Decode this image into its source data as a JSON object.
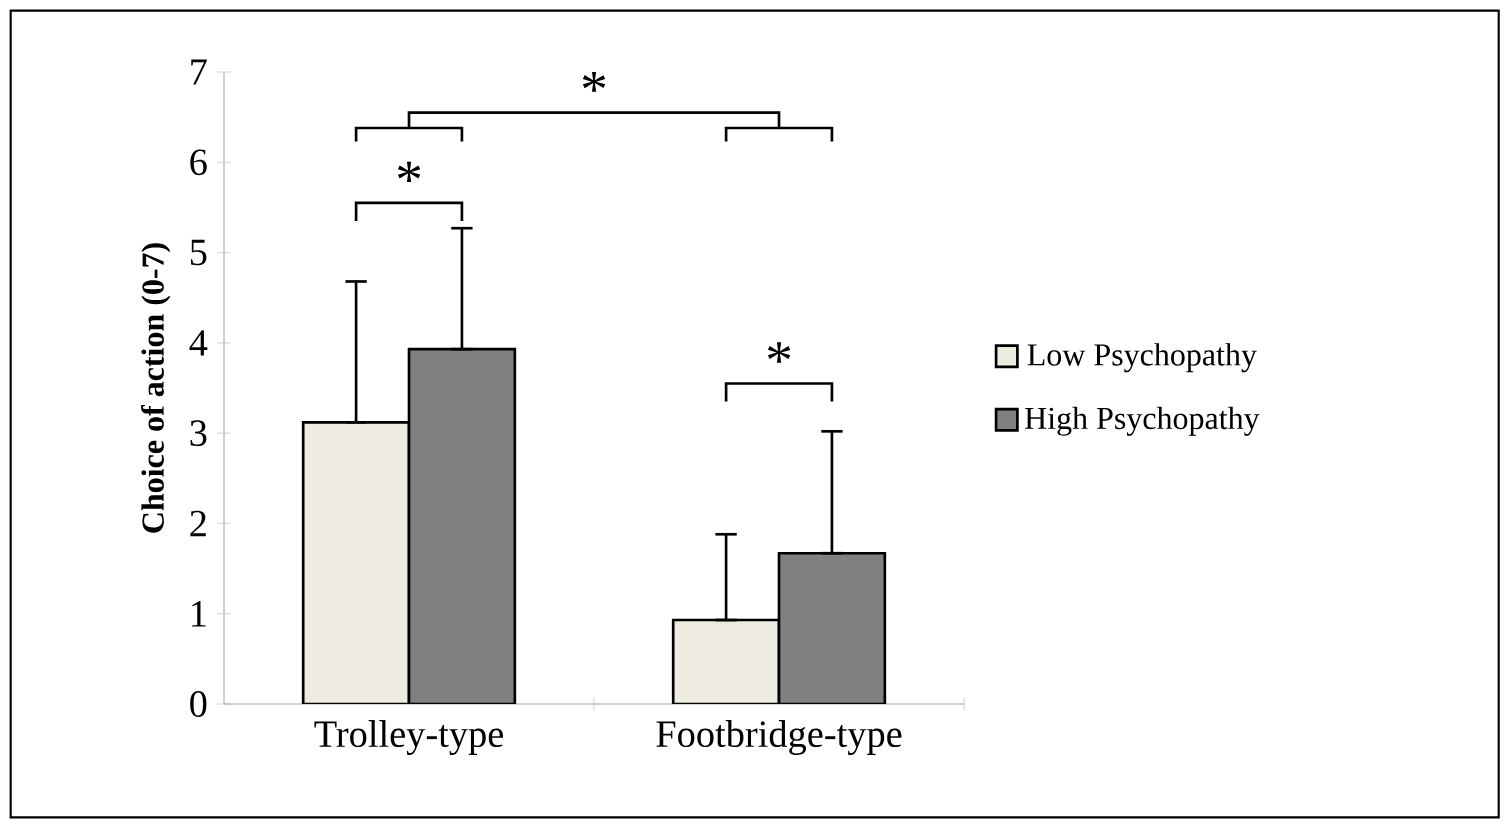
{
  "chart_data": {
    "type": "bar",
    "ylabel": "Choice of action (0-7)",
    "categories": [
      "Trolley-type",
      "Footbridge-type"
    ],
    "series": [
      {
        "name": "Low Psychopathy",
        "color": "#eeebe0",
        "values": [
          3.12,
          0.93
        ],
        "errors": [
          [
            3.12,
            4.68
          ],
          [
            0.93,
            1.88
          ]
        ]
      },
      {
        "name": "High Psychopathy",
        "color": "#808080",
        "values": [
          3.93,
          1.67
        ],
        "errors": [
          [
            3.93,
            5.27
          ],
          [
            1.67,
            3.02
          ]
        ]
      }
    ],
    "ylim": [
      0,
      7
    ],
    "yticks": [
      0,
      1,
      2,
      3,
      4,
      5,
      6,
      7
    ],
    "grid": false,
    "legend": "right",
    "annotations": [
      "*",
      "*",
      "*"
    ]
  }
}
